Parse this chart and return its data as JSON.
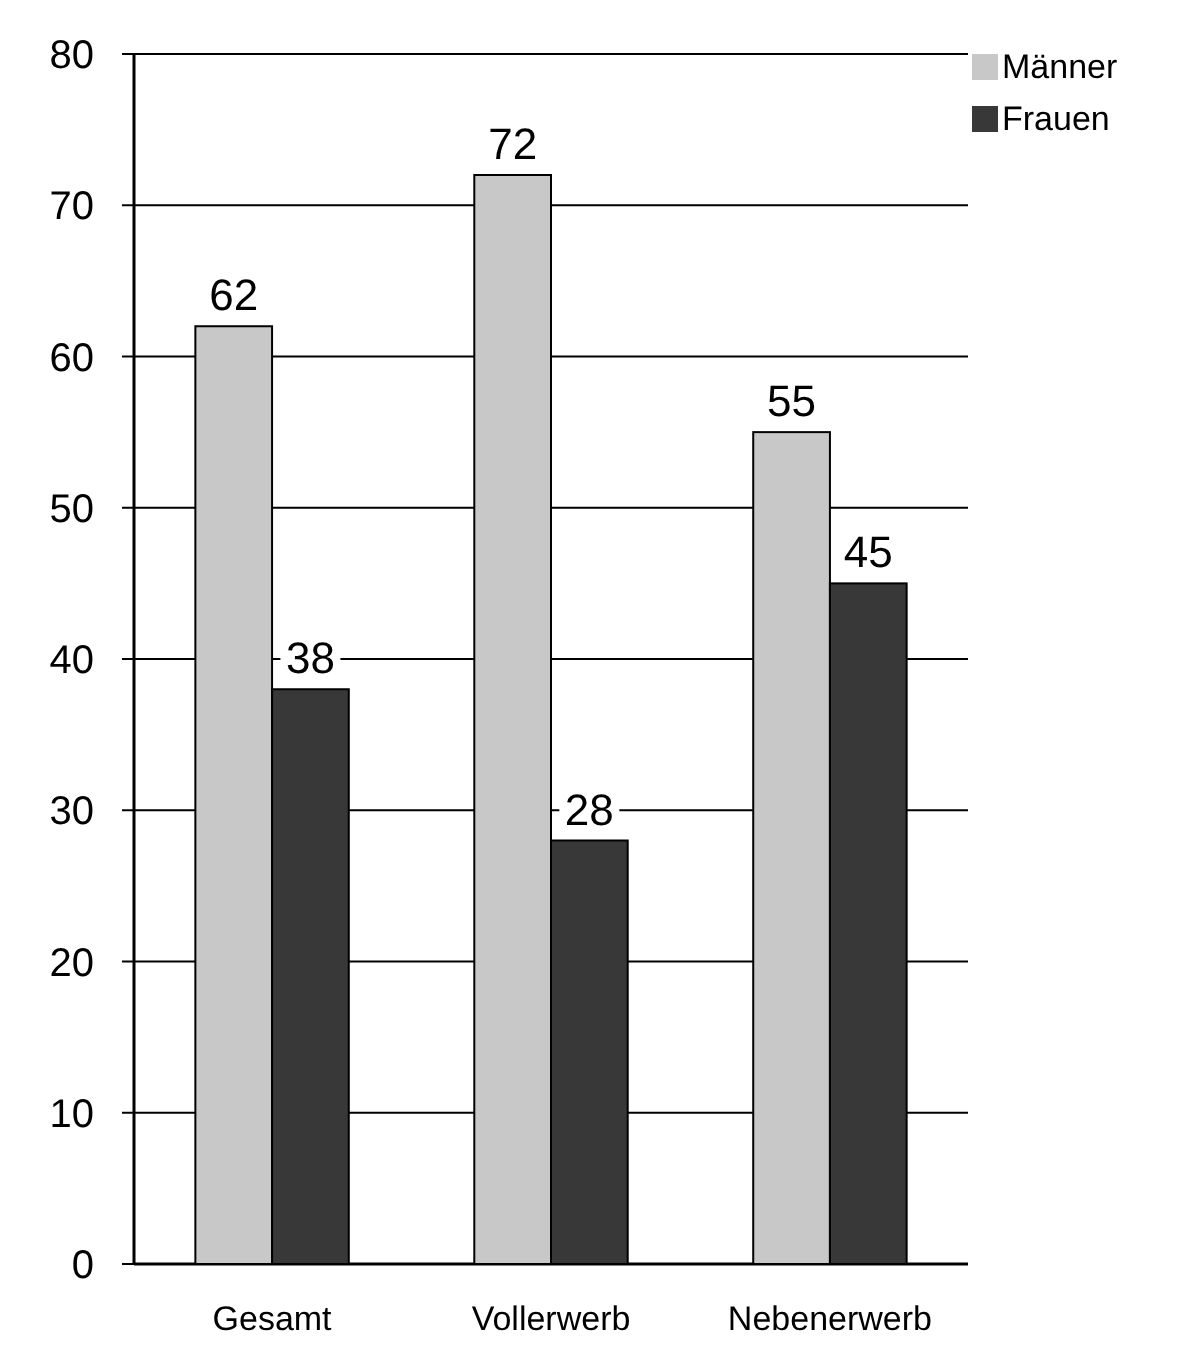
{
  "chart_data": {
    "type": "bar",
    "categories": [
      "Gesamt",
      "Vollerwerb",
      "Nebenerwerb"
    ],
    "series": [
      {
        "name": "Männer",
        "color": "#c8c8c8",
        "values": [
          62,
          72,
          55
        ]
      },
      {
        "name": "Frauen",
        "color": "#383838",
        "values": [
          38,
          28,
          45
        ]
      }
    ],
    "ylim": [
      0,
      80
    ],
    "yticks": [
      0,
      10,
      20,
      30,
      40,
      50,
      60,
      70,
      80
    ],
    "grid": "y",
    "legend": "top right",
    "data_labels": true
  }
}
